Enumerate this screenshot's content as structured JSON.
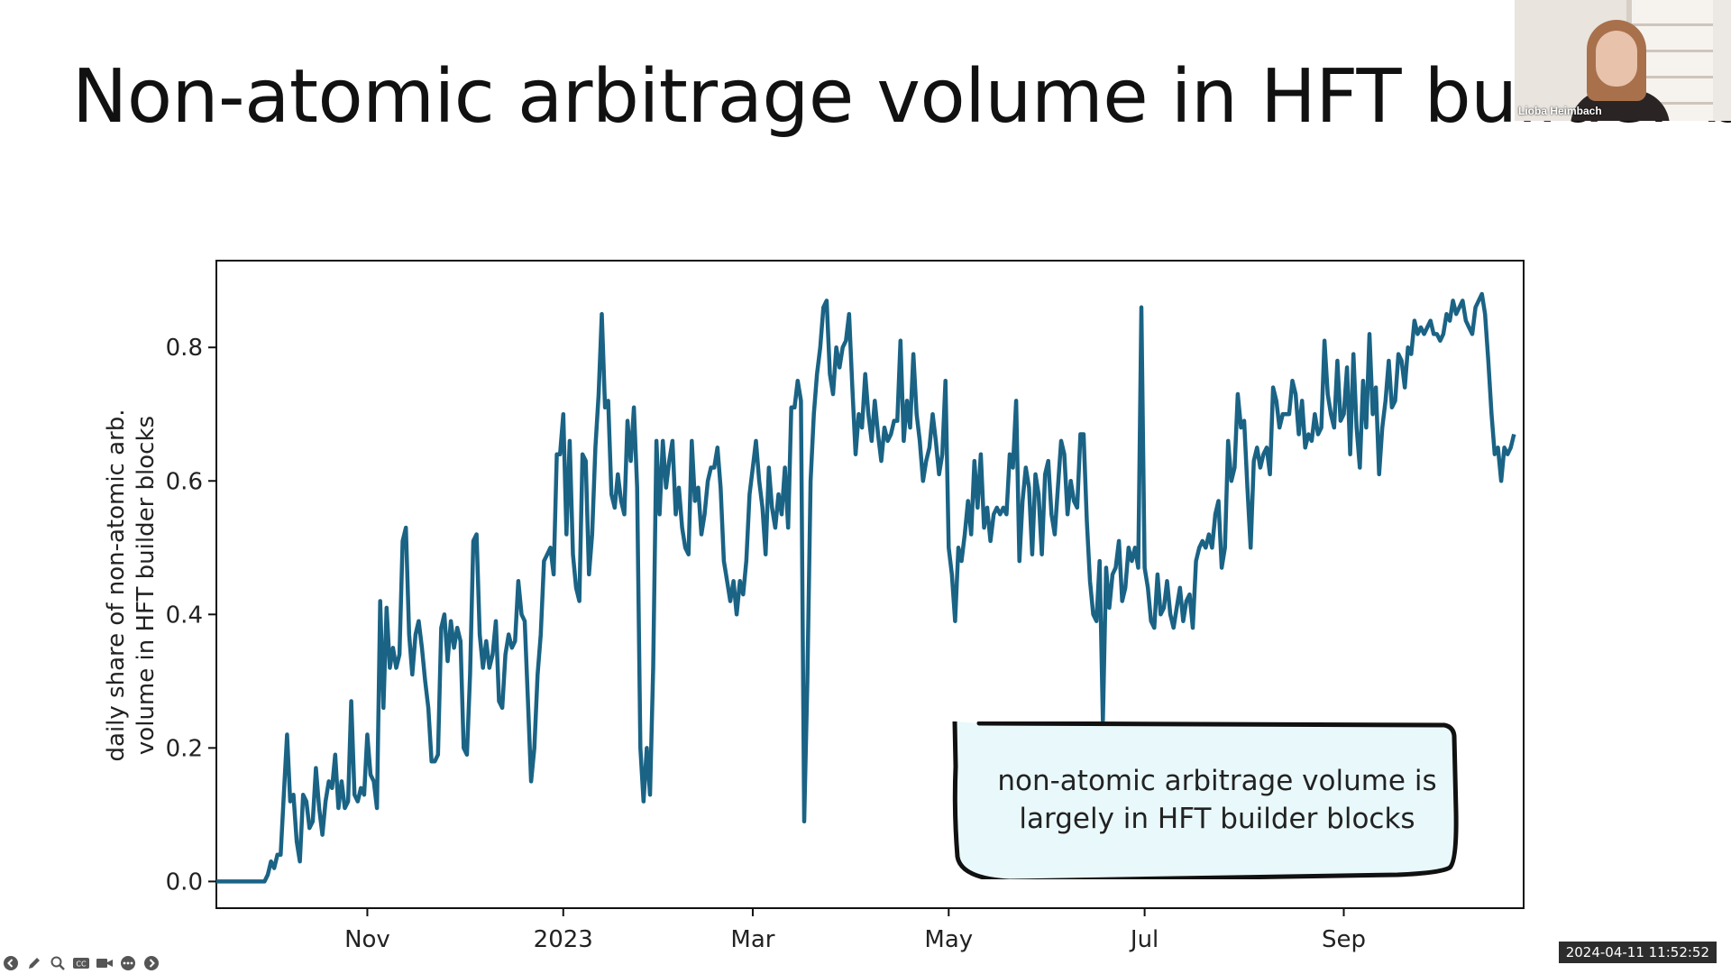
{
  "slide": {
    "title": "Non-atomic arbitrage volume in HFT builder bl"
  },
  "chart_data": {
    "type": "line",
    "title": "",
    "xlabel": "",
    "ylabel": "daily share of non-atomic arb. volume in HFT builder blocks",
    "ylabel_lines": [
      "daily share of non-atomic arb.",
      "volume in HFT builder blocks"
    ],
    "x_start": "2022-09-15",
    "x_end": "2023-10-27",
    "xlim": [
      "2022-09-15",
      "2023-10-27"
    ],
    "ylim": [
      -0.04,
      0.93
    ],
    "x_ticks": [
      {
        "date": "2022-11-01",
        "label": "Nov"
      },
      {
        "date": "2023-01-01",
        "label": "2023"
      },
      {
        "date": "2023-03-01",
        "label": "Mar"
      },
      {
        "date": "2023-05-01",
        "label": "May"
      },
      {
        "date": "2023-07-01",
        "label": "Jul"
      },
      {
        "date": "2023-09-01",
        "label": "Sep"
      }
    ],
    "y_ticks": [
      {
        "value": 0.0,
        "label": "0.0"
      },
      {
        "value": 0.2,
        "label": "0.2"
      },
      {
        "value": 0.4,
        "label": "0.4"
      },
      {
        "value": 0.6,
        "label": "0.6"
      },
      {
        "value": 0.8,
        "label": "0.8"
      }
    ],
    "grid": false,
    "series": [
      {
        "color": "#1a6385",
        "y": [
          0,
          0,
          0,
          0,
          0,
          0,
          0,
          0,
          0,
          0,
          0,
          0,
          0,
          0,
          0,
          0,
          0.01,
          0.03,
          0.02,
          0.04,
          0.04,
          0.13,
          0.22,
          0.12,
          0.13,
          0.06,
          0.03,
          0.13,
          0.12,
          0.08,
          0.09,
          0.17,
          0.11,
          0.07,
          0.12,
          0.15,
          0.14,
          0.19,
          0.11,
          0.15,
          0.11,
          0.12,
          0.27,
          0.13,
          0.12,
          0.14,
          0.13,
          0.22,
          0.16,
          0.15,
          0.11,
          0.42,
          0.26,
          0.41,
          0.32,
          0.35,
          0.32,
          0.34,
          0.51,
          0.53,
          0.37,
          0.31,
          0.37,
          0.39,
          0.35,
          0.3,
          0.26,
          0.18,
          0.18,
          0.19,
          0.38,
          0.4,
          0.33,
          0.39,
          0.35,
          0.38,
          0.36,
          0.2,
          0.19,
          0.31,
          0.51,
          0.52,
          0.37,
          0.32,
          0.36,
          0.32,
          0.34,
          0.39,
          0.27,
          0.26,
          0.34,
          0.37,
          0.35,
          0.36,
          0.45,
          0.4,
          0.39,
          0.27,
          0.15,
          0.2,
          0.31,
          0.37,
          0.48,
          0.49,
          0.5,
          0.46,
          0.64,
          0.64,
          0.7,
          0.52,
          0.66,
          0.49,
          0.44,
          0.42,
          0.64,
          0.63,
          0.46,
          0.52,
          0.65,
          0.73,
          0.85,
          0.71,
          0.72,
          0.58,
          0.56,
          0.61,
          0.57,
          0.55,
          0.69,
          0.63,
          0.71,
          0.59,
          0.2,
          0.12,
          0.2,
          0.13,
          0.32,
          0.66,
          0.55,
          0.66,
          0.59,
          0.63,
          0.66,
          0.55,
          0.59,
          0.53,
          0.5,
          0.49,
          0.66,
          0.57,
          0.59,
          0.52,
          0.55,
          0.6,
          0.62,
          0.62,
          0.65,
          0.59,
          0.48,
          0.45,
          0.42,
          0.45,
          0.4,
          0.45,
          0.43,
          0.48,
          0.58,
          0.62,
          0.66,
          0.6,
          0.56,
          0.49,
          0.62,
          0.56,
          0.53,
          0.58,
          0.55,
          0.62,
          0.53,
          0.71,
          0.71,
          0.75,
          0.72,
          0.09,
          0.3,
          0.6,
          0.7,
          0.76,
          0.8,
          0.86,
          0.87,
          0.76,
          0.73,
          0.8,
          0.77,
          0.8,
          0.81,
          0.85,
          0.74,
          0.64,
          0.7,
          0.68,
          0.76,
          0.7,
          0.66,
          0.72,
          0.67,
          0.63,
          0.68,
          0.66,
          0.67,
          0.69,
          0.69,
          0.81,
          0.66,
          0.72,
          0.68,
          0.79,
          0.7,
          0.66,
          0.6,
          0.63,
          0.65,
          0.7,
          0.66,
          0.61,
          0.64,
          0.75,
          0.5,
          0.46,
          0.39,
          0.5,
          0.48,
          0.52,
          0.57,
          0.52,
          0.63,
          0.56,
          0.64,
          0.53,
          0.56,
          0.51,
          0.55,
          0.56,
          0.55,
          0.56,
          0.55,
          0.64,
          0.62,
          0.72,
          0.48,
          0.57,
          0.62,
          0.59,
          0.49,
          0.61,
          0.58,
          0.49,
          0.61,
          0.63,
          0.55,
          0.52,
          0.59,
          0.66,
          0.64,
          0.55,
          0.6,
          0.57,
          0.56,
          0.67,
          0.67,
          0.54,
          0.45,
          0.4,
          0.39,
          0.48,
          0.24,
          0.47,
          0.41,
          0.46,
          0.47,
          0.51,
          0.42,
          0.44,
          0.5,
          0.48,
          0.5,
          0.47,
          0.86,
          0.47,
          0.44,
          0.39,
          0.38,
          0.46,
          0.4,
          0.41,
          0.45,
          0.4,
          0.38,
          0.41,
          0.44,
          0.39,
          0.42,
          0.43,
          0.38,
          0.48,
          0.5,
          0.51,
          0.5,
          0.52,
          0.5,
          0.55,
          0.57,
          0.47,
          0.5,
          0.66,
          0.6,
          0.62,
          0.73,
          0.68,
          0.69,
          0.59,
          0.5,
          0.63,
          0.65,
          0.62,
          0.64,
          0.65,
          0.61,
          0.74,
          0.72,
          0.68,
          0.7,
          0.7,
          0.7,
          0.75,
          0.73,
          0.67,
          0.72,
          0.65,
          0.67,
          0.66,
          0.7,
          0.67,
          0.68,
          0.81,
          0.73,
          0.7,
          0.68,
          0.78,
          0.69,
          0.7,
          0.77,
          0.64,
          0.79,
          0.68,
          0.62,
          0.75,
          0.68,
          0.82,
          0.7,
          0.74,
          0.61,
          0.68,
          0.72,
          0.78,
          0.71,
          0.72,
          0.79,
          0.78,
          0.74,
          0.8,
          0.79,
          0.84,
          0.82,
          0.83,
          0.82,
          0.83,
          0.84,
          0.82,
          0.82,
          0.81,
          0.82,
          0.85,
          0.84,
          0.87,
          0.85,
          0.86,
          0.87,
          0.84,
          0.83,
          0.82,
          0.86,
          0.87,
          0.88,
          0.85,
          0.78,
          0.7,
          0.64,
          0.65,
          0.6,
          0.65,
          0.64,
          0.65,
          0.67
        ]
      }
    ],
    "annotation": {
      "lines": [
        "non-atomic arbitrage volume is",
        "largely in HFT builder blocks"
      ],
      "fill": "#e9f8fa"
    }
  },
  "presenter": {
    "name": "Lioba Heimbach"
  },
  "toolbar": {
    "icons": [
      "back-icon",
      "pen-icon",
      "zoom-icon",
      "cc-icon",
      "camera-icon",
      "more-icon",
      "forward-icon"
    ]
  },
  "timestamp": "2024-04-11 11:52:52"
}
